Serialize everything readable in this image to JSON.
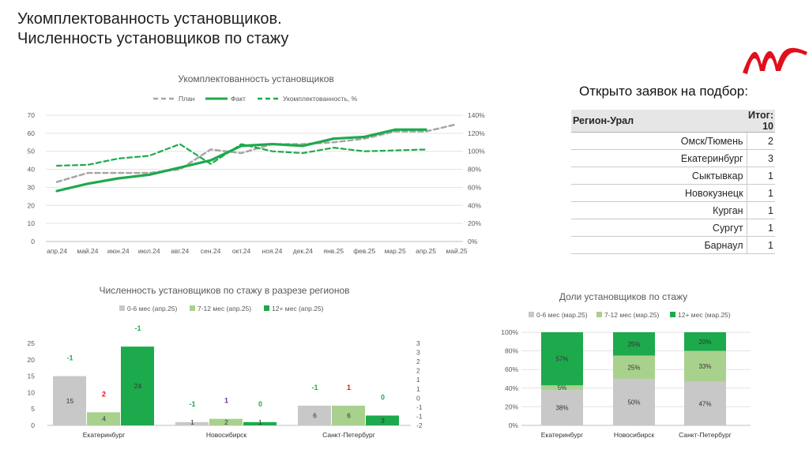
{
  "page": {
    "title_line1": "Укомплектованность установщиков.",
    "title_line2": "Численность установщиков по стажу"
  },
  "colors": {
    "plan": "#a6a6a6",
    "fact": "#1daa4c",
    "accent_red": "#e10f1b",
    "light_green": "#a9d18e",
    "grey": "#c8c8c8"
  },
  "applications": {
    "title": "Открыто заявок на подбор:",
    "region_label": "Регион-Урал",
    "total_label": "Итог: 10",
    "rows": [
      {
        "city": "Омск/Тюмень",
        "count": "2"
      },
      {
        "city": "Екатеринбург",
        "count": "3"
      },
      {
        "city": "Сыктывкар",
        "count": "1"
      },
      {
        "city": "Новокузнецк",
        "count": "1"
      },
      {
        "city": "Курган",
        "count": "1"
      },
      {
        "city": "Сургут",
        "count": "1"
      },
      {
        "city": "Барнаул",
        "count": "1"
      }
    ]
  },
  "chart_data": [
    {
      "type": "line",
      "title": "Укомплектованность установщиков",
      "categories": [
        "апр.24",
        "май.24",
        "июн.24",
        "июл.24",
        "авг.24",
        "сен.24",
        "окт.24",
        "ноя.24",
        "дек.24",
        "янв.25",
        "фев.25",
        "мар.25",
        "апр.25",
        "май.25"
      ],
      "y_ticks": [
        "0",
        "10",
        "20",
        "30",
        "40",
        "50",
        "60",
        "70"
      ],
      "y2_ticks": [
        "0%",
        "20%",
        "40%",
        "60%",
        "80%",
        "100%",
        "120%",
        "140%"
      ],
      "ylim": [
        0,
        70
      ],
      "y2lim": [
        0,
        140
      ],
      "legend_position": "top",
      "series": [
        {
          "name": "План",
          "axis": "left",
          "style": "dashed",
          "values": [
            33,
            38,
            38,
            38,
            40,
            51,
            49,
            54,
            54,
            55,
            57,
            61,
            61,
            65
          ]
        },
        {
          "name": "Факт",
          "axis": "left",
          "style": "solid",
          "values": [
            28,
            32,
            35,
            37,
            41,
            45,
            53,
            54,
            53,
            57,
            58,
            62,
            62,
            null
          ]
        },
        {
          "name": "Укомплектованность, %",
          "axis": "right",
          "style": "dashed",
          "values": [
            84,
            85,
            92,
            95,
            108,
            86,
            108,
            100,
            98,
            104,
            100,
            101,
            102,
            null
          ]
        }
      ]
    },
    {
      "type": "bar",
      "title": "Численность установщиков по стажу в разрезе регионов",
      "categories": [
        "Екатеринбург",
        "Новосибирск",
        "Санкт-Петербург"
      ],
      "y_ticks": [
        "0",
        "5",
        "10",
        "15",
        "20",
        "25"
      ],
      "y2_ticks": [
        "-2",
        "-1",
        "-1",
        "0",
        "1",
        "1",
        "2",
        "2",
        "3",
        "3"
      ],
      "ylim": [
        0,
        25
      ],
      "legend_position": "top",
      "series": [
        {
          "name": "0-6 мес (апр.25)",
          "values": [
            15,
            1,
            6
          ],
          "labels": [
            "15",
            "1",
            "6"
          ],
          "changes": [
            "-1",
            "-1",
            "-1"
          ]
        },
        {
          "name": "7-12 мес (апр.25)",
          "values": [
            4,
            2,
            6
          ],
          "labels": [
            "4",
            "2",
            "6"
          ],
          "changes": [
            "2",
            "1",
            "1"
          ]
        },
        {
          "name": "12+ мес (апр.25)",
          "values": [
            24,
            1,
            3
          ],
          "labels": [
            "24",
            "1",
            "3"
          ],
          "changes": [
            "-1",
            "0",
            "0"
          ]
        }
      ]
    },
    {
      "type": "bar",
      "stacked": true,
      "title": "Доли установщиков по стажу",
      "categories": [
        "Екатеринбург",
        "Новосибирск",
        "Санкт-Петербург"
      ],
      "y_ticks": [
        "0%",
        "20%",
        "40%",
        "60%",
        "80%",
        "100%"
      ],
      "ylim": [
        0,
        100
      ],
      "legend_position": "top",
      "series": [
        {
          "name": "0-6 мес (мар.25)",
          "values": [
            38,
            50,
            47
          ],
          "labels": [
            "38%",
            "50%",
            "47%"
          ]
        },
        {
          "name": "7-12 мес (мар.25)",
          "values": [
            5,
            25,
            33
          ],
          "labels": [
            "5%",
            "25%",
            "33%"
          ]
        },
        {
          "name": "12+ мес (мар.25)",
          "values": [
            57,
            25,
            20
          ],
          "labels": [
            "57%",
            "25%",
            "20%"
          ]
        }
      ]
    }
  ]
}
